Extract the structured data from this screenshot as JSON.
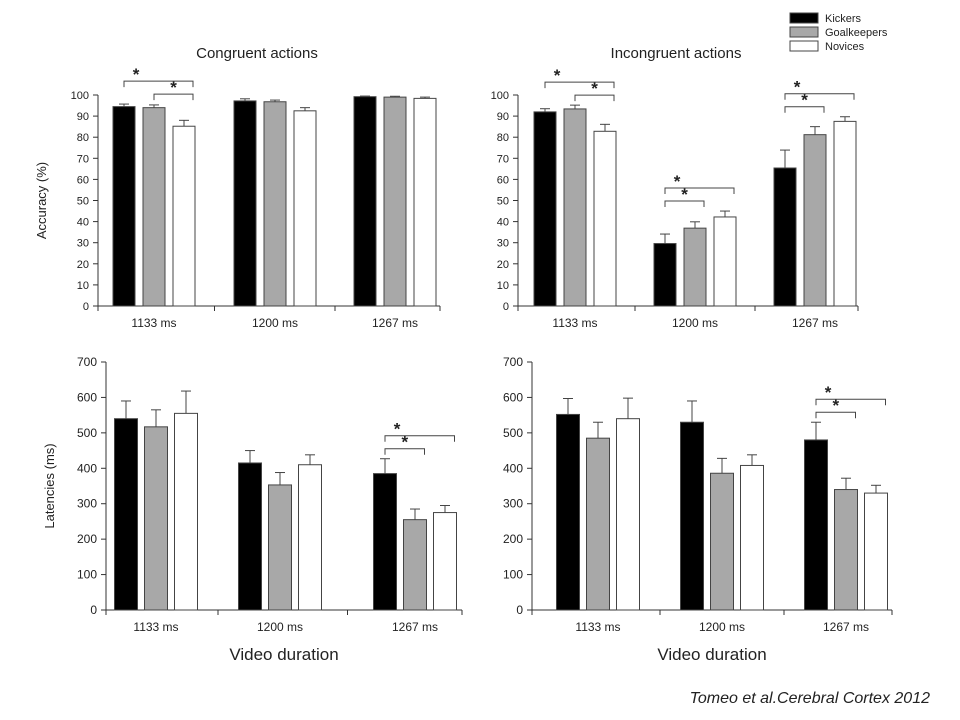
{
  "caption": "Tomeo et al.Cerebral Cortex 2012",
  "legend": {
    "placement": "top-right",
    "entries": [
      {
        "name": "Kickers",
        "color": "#000000"
      },
      {
        "name": "Goalkeepers",
        "color": "#a8a8a8"
      },
      {
        "name": "Novices",
        "color": "#ffffff"
      }
    ]
  },
  "chart_data": [
    {
      "type": "bar",
      "title": "Congruent actions",
      "xlabel": "",
      "ylabel": "Accuracy (%)",
      "ylim": [
        0,
        100
      ],
      "yticks": [
        0,
        10,
        20,
        30,
        40,
        50,
        60,
        70,
        80,
        90,
        100
      ],
      "categories": [
        "1133 ms",
        "1200 ms",
        "1267 ms"
      ],
      "series": [
        {
          "name": "Kickers",
          "color": "#000000",
          "values": [
            94.5,
            97.2,
            99.2
          ],
          "errors": [
            1.2,
            1.0,
            0.3
          ]
        },
        {
          "name": "Goalkeepers",
          "color": "#a8a8a8",
          "values": [
            94.0,
            96.8,
            99.0
          ],
          "errors": [
            1.3,
            0.8,
            0.4
          ]
        },
        {
          "name": "Novices",
          "color": "#ffffff",
          "values": [
            85.2,
            92.5,
            98.4
          ],
          "errors": [
            2.8,
            1.5,
            0.6
          ]
        }
      ],
      "significance": [
        {
          "category": 0,
          "from": 0,
          "to": 2,
          "label": "*"
        },
        {
          "category": 0,
          "from": 1,
          "to": 2,
          "label": "*"
        }
      ]
    },
    {
      "type": "bar",
      "title": "Incongruent actions",
      "xlabel": "",
      "ylabel": "",
      "ylim": [
        0,
        100
      ],
      "yticks": [
        0,
        10,
        20,
        30,
        40,
        50,
        60,
        70,
        80,
        90,
        100
      ],
      "categories": [
        "1133 ms",
        "1200 ms",
        "1267 ms"
      ],
      "series": [
        {
          "name": "Kickers",
          "color": "#000000",
          "values": [
            92.0,
            29.6,
            65.4
          ],
          "errors": [
            1.5,
            4.5,
            8.5
          ]
        },
        {
          "name": "Goalkeepers",
          "color": "#a8a8a8",
          "values": [
            93.4,
            36.9,
            81.2
          ],
          "errors": [
            1.8,
            3.0,
            3.8
          ]
        },
        {
          "name": "Novices",
          "color": "#ffffff",
          "values": [
            82.8,
            42.2,
            87.5
          ],
          "errors": [
            3.3,
            2.8,
            2.2
          ]
        }
      ],
      "significance": [
        {
          "category": 0,
          "from": 0,
          "to": 2,
          "label": "*"
        },
        {
          "category": 0,
          "from": 1,
          "to": 2,
          "label": "*"
        },
        {
          "category": 1,
          "from": 0,
          "to": 1,
          "label": "*"
        },
        {
          "category": 1,
          "from": 0,
          "to": 2,
          "label": "*"
        },
        {
          "category": 2,
          "from": 0,
          "to": 1,
          "label": "*"
        },
        {
          "category": 2,
          "from": 0,
          "to": 2,
          "label": "*"
        }
      ]
    },
    {
      "type": "bar",
      "title": "",
      "xlabel": "Video duration",
      "ylabel": "Latencies (ms)",
      "ylim": [
        0,
        700
      ],
      "yticks": [
        0,
        100,
        200,
        300,
        400,
        500,
        600,
        700
      ],
      "categories": [
        "1133 ms",
        "1200 ms",
        "1267 ms"
      ],
      "series": [
        {
          "name": "Kickers",
          "color": "#000000",
          "values": [
            540,
            415,
            385
          ],
          "errors": [
            50,
            35,
            42
          ]
        },
        {
          "name": "Goalkeepers",
          "color": "#a8a8a8",
          "values": [
            517,
            353,
            255
          ],
          "errors": [
            48,
            35,
            30
          ]
        },
        {
          "name": "Novices",
          "color": "#ffffff",
          "values": [
            555,
            410,
            275
          ],
          "errors": [
            63,
            28,
            20
          ]
        }
      ],
      "significance": [
        {
          "category": 2,
          "from": 0,
          "to": 1,
          "label": "*"
        },
        {
          "category": 2,
          "from": 0,
          "to": 2,
          "label": "*"
        }
      ]
    },
    {
      "type": "bar",
      "title": "",
      "xlabel": "Video duration",
      "ylabel": "",
      "ylim": [
        0,
        700
      ],
      "yticks": [
        0,
        100,
        200,
        300,
        400,
        500,
        600,
        700
      ],
      "categories": [
        "1133 ms",
        "1200 ms",
        "1267 ms"
      ],
      "series": [
        {
          "name": "Kickers",
          "color": "#000000",
          "values": [
            552,
            530,
            480
          ],
          "errors": [
            45,
            60,
            50
          ]
        },
        {
          "name": "Goalkeepers",
          "color": "#a8a8a8",
          "values": [
            485,
            386,
            340
          ],
          "errors": [
            45,
            42,
            32
          ]
        },
        {
          "name": "Novices",
          "color": "#ffffff",
          "values": [
            540,
            408,
            330
          ],
          "errors": [
            58,
            30,
            22
          ]
        }
      ],
      "significance": [
        {
          "category": 2,
          "from": 0,
          "to": 1,
          "label": "*"
        },
        {
          "category": 2,
          "from": 0,
          "to": 2,
          "label": "*"
        }
      ]
    }
  ]
}
